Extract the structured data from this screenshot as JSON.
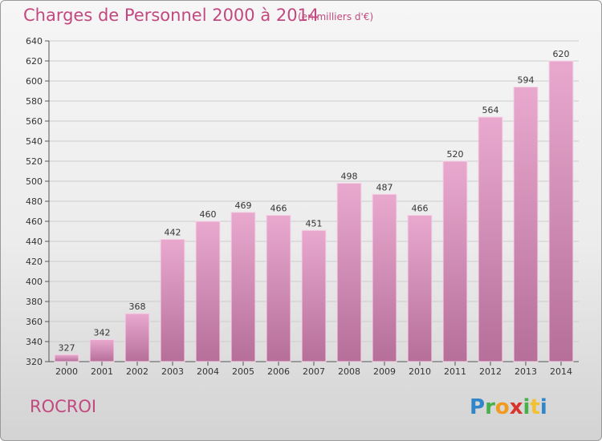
{
  "title": "Charges de Personnel 2000 à 2014",
  "subtitle": "(en milliers d'€)",
  "commune": "ROCROI",
  "logo_text": "Proxiti",
  "colors": {
    "accent": "#c2497f",
    "bar_top": "#e9a9cf",
    "bar_bottom": "#b56f99"
  },
  "chart_data": {
    "type": "bar",
    "categories": [
      "2000",
      "2001",
      "2002",
      "2003",
      "2004",
      "2005",
      "2006",
      "2007",
      "2008",
      "2009",
      "2010",
      "2011",
      "2012",
      "2013",
      "2014"
    ],
    "values": [
      327,
      342,
      368,
      442,
      460,
      469,
      466,
      451,
      498,
      487,
      466,
      520,
      564,
      594,
      620
    ],
    "ylim": [
      320,
      640
    ],
    "yticks": [
      320,
      340,
      360,
      380,
      400,
      420,
      440,
      460,
      480,
      500,
      520,
      540,
      560,
      580,
      600,
      620,
      640
    ],
    "grid": true,
    "data_labels": true
  }
}
